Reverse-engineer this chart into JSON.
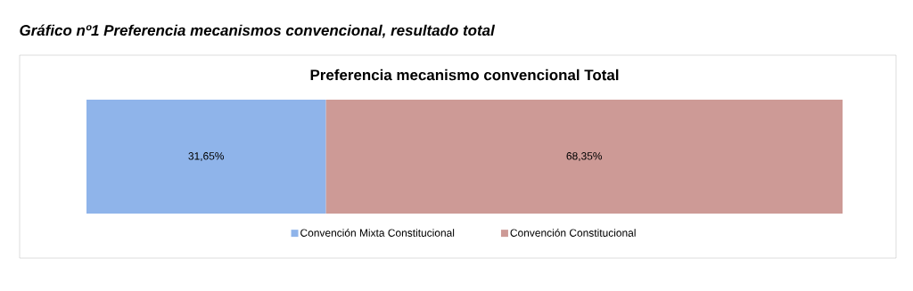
{
  "chart_data": {
    "type": "bar",
    "orientation": "horizontal",
    "stacked": true,
    "title": "Gráfico nº1 Preferencia mecanismos convencional, resultado total",
    "subtitle": "Preferencia mecanismo convencional Total",
    "categories": [
      null
    ],
    "legend": "bottom",
    "series": [
      {
        "name": "Convención Mixta Constitucional",
        "color": "#8fb4ea",
        "values": [
          31.65
        ],
        "value_labels": [
          "31,65%"
        ]
      },
      {
        "name": "Convención Constitucional",
        "color": "#cd9a96",
        "values": [
          68.35
        ],
        "value_labels": [
          "68,35%"
        ]
      }
    ]
  }
}
